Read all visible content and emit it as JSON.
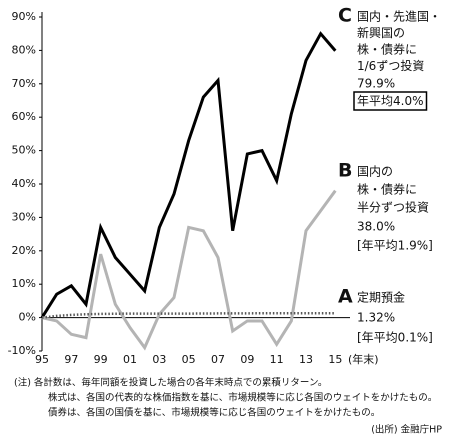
{
  "chart_data": {
    "type": "line",
    "x": [
      1995,
      1996,
      1997,
      1998,
      1999,
      2000,
      2001,
      2002,
      2003,
      2004,
      2005,
      2006,
      2007,
      2008,
      2009,
      2010,
      2011,
      2012,
      2013,
      2014,
      2015
    ],
    "xlim": [
      1995,
      2016
    ],
    "xticks": [
      {
        "value": 1995,
        "label": "95"
      },
      {
        "value": 1997,
        "label": "97"
      },
      {
        "value": 1999,
        "label": "99"
      },
      {
        "value": 2001,
        "label": "01"
      },
      {
        "value": 2003,
        "label": "03"
      },
      {
        "value": 2005,
        "label": "05"
      },
      {
        "value": 2007,
        "label": "07"
      },
      {
        "value": 2009,
        "label": "09"
      },
      {
        "value": 2011,
        "label": "11"
      },
      {
        "value": 2013,
        "label": "13"
      },
      {
        "value": 2015,
        "label": "15"
      }
    ],
    "x_label": "(年末)",
    "ylim": [
      -10,
      90
    ],
    "yticks": [
      {
        "value": -10,
        "label": "-10%"
      },
      {
        "value": 0,
        "label": "0%"
      },
      {
        "value": 10,
        "label": "10%"
      },
      {
        "value": 20,
        "label": "20%"
      },
      {
        "value": 30,
        "label": "30%"
      },
      {
        "value": 40,
        "label": "40%"
      },
      {
        "value": 50,
        "label": "50%"
      },
      {
        "value": 60,
        "label": "60%"
      },
      {
        "value": 70,
        "label": "70%"
      },
      {
        "value": 80,
        "label": "80%"
      },
      {
        "value": 90,
        "label": "90%"
      }
    ],
    "series": [
      {
        "letter": "C",
        "name": [
          "国内・先進国・",
          "新興国の",
          "株・債券に",
          "1/6ずつ投資"
        ],
        "color": "#000000",
        "style": "solid",
        "values": [
          0,
          7,
          9.5,
          4,
          27,
          18,
          13,
          8,
          27,
          37,
          53,
          66,
          71,
          26,
          49,
          50,
          41,
          61,
          77,
          85,
          79.9
        ],
        "end_label": "79.9%",
        "annual_label": "年平均4.0%",
        "annual_boxed": true
      },
      {
        "letter": "B",
        "name": [
          "国内の",
          "株・債券に",
          "半分ずつ投資"
        ],
        "color": "#b4b4b4",
        "style": "solid",
        "values": [
          0,
          -1,
          -5,
          -6,
          19,
          4,
          -3,
          -9,
          1,
          6,
          27,
          26,
          18,
          -4,
          -1,
          -1,
          -8,
          -1,
          26,
          32,
          38.0
        ],
        "end_label": "38.0%",
        "annual_label": "[年平均1.9%]",
        "annual_boxed": false
      },
      {
        "letter": "A",
        "name": [
          "定期預金"
        ],
        "color": "#555555",
        "style": "dotted",
        "values": [
          0,
          0.5,
          0.8,
          1.0,
          1.1,
          1.15,
          1.2,
          1.2,
          1.2,
          1.2,
          1.2,
          1.22,
          1.25,
          1.27,
          1.28,
          1.29,
          1.3,
          1.3,
          1.31,
          1.31,
          1.32
        ],
        "end_label": "1.32%",
        "annual_label": "[年平均0.1%]",
        "annual_boxed": false
      }
    ],
    "notes": [
      "(注) 各計数は、毎年同額を投資した場合の各年末時点での累積リターン。",
      "株式は、各国の代表的な株価指数を基に、市場規模等に応じ各国のウェイトをかけたもの。",
      "債券は、各国の国債を基に、市場規模等に応じ各国のウェイトをかけたもの。"
    ],
    "source": "(出所) 金融庁HP"
  }
}
